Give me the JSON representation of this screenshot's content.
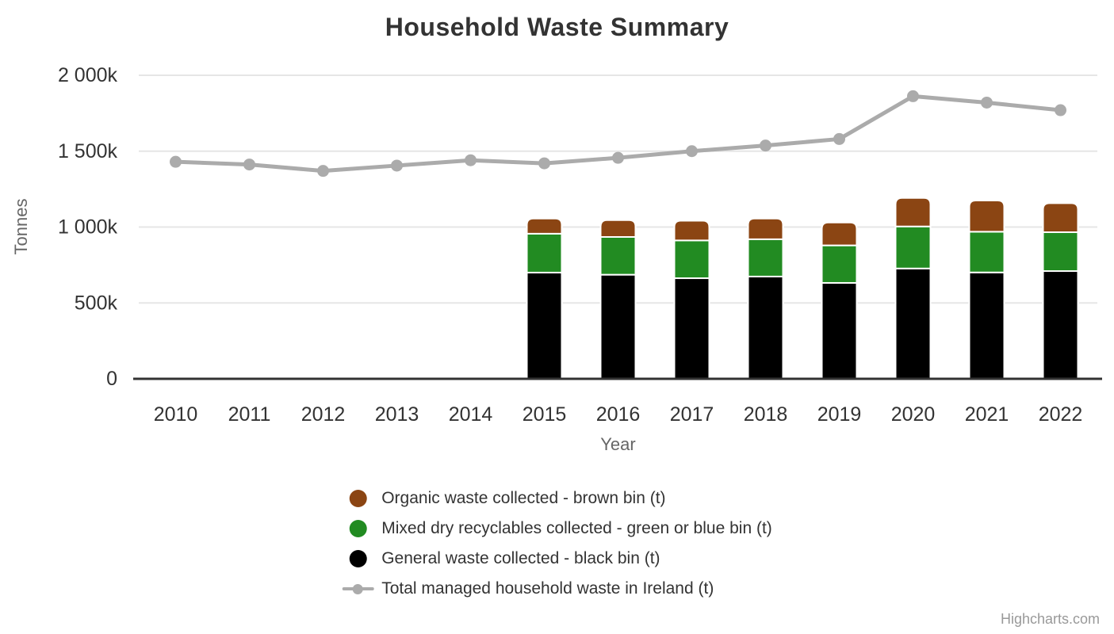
{
  "credits_label": "Highcharts.com",
  "colors": {
    "background": "#ffffff",
    "grid": "#e6e6e6",
    "axis_line": "#333333",
    "label_text": "#333333",
    "axis_title_text": "#666666",
    "credits_text": "#999999",
    "bar_border": "#ffffff"
  },
  "chart_data": {
    "type": "bar",
    "subtype": "stacked-columns-with-line-overlay",
    "title": "Household Waste Summary",
    "xlabel": "Year",
    "ylabel": "Tonnes",
    "categories": [
      "2010",
      "2011",
      "2012",
      "2013",
      "2014",
      "2015",
      "2016",
      "2017",
      "2018",
      "2019",
      "2020",
      "2021",
      "2022"
    ],
    "ylim": [
      0,
      2000000
    ],
    "yticks": [
      0,
      500000,
      1000000,
      1500000,
      2000000
    ],
    "ytick_labels": [
      "0",
      "500k",
      "1 000k",
      "1 500k",
      "2 000k"
    ],
    "grid": true,
    "legend_position": "bottom-center-vertical",
    "series": [
      {
        "id": "organic",
        "name": "Organic waste collected - brown bin (t)",
        "type": "column",
        "color": "#8B4513",
        "values": [
          null,
          null,
          null,
          null,
          null,
          100000,
          111000,
          130000,
          136000,
          151000,
          188000,
          206000,
          191000
        ]
      },
      {
        "id": "mixed",
        "name": "Mixed dry recyclables collected - green or blue bin (t)",
        "type": "column",
        "color": "#228B22",
        "values": [
          null,
          null,
          null,
          null,
          null,
          256000,
          249000,
          249000,
          246000,
          247000,
          277000,
          268000,
          256000
        ]
      },
      {
        "id": "general",
        "name": "General waste collected - black bin (t)",
        "type": "column",
        "color": "#000000",
        "values": [
          null,
          null,
          null,
          null,
          null,
          700000,
          686000,
          663000,
          674000,
          632000,
          727000,
          701000,
          710000
        ]
      },
      {
        "id": "total",
        "name": "Total managed household waste in Ireland (t)",
        "type": "line",
        "color": "#ABABAB",
        "values": [
          1430000,
          1412000,
          1370000,
          1405000,
          1440000,
          1420000,
          1456000,
          1500000,
          1537000,
          1580000,
          1862000,
          1820000,
          1770000
        ]
      }
    ]
  }
}
